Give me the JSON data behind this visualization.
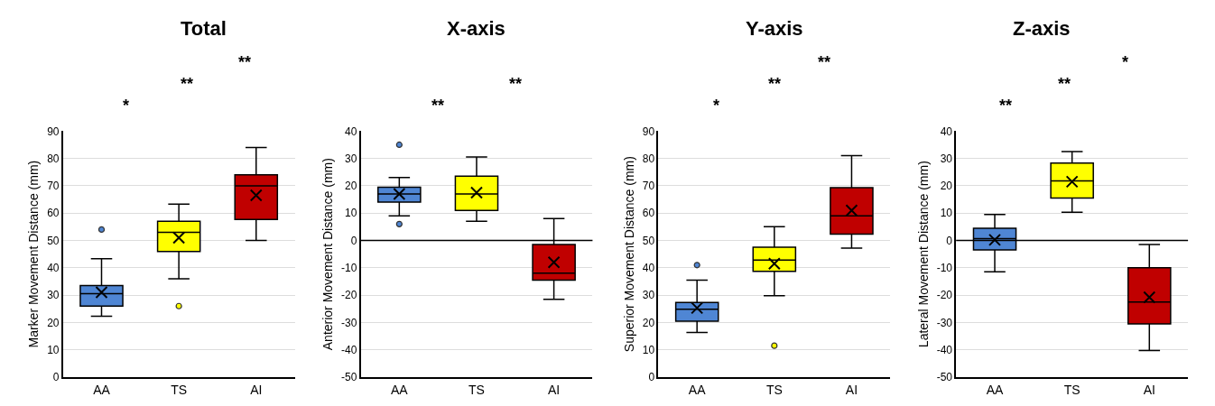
{
  "chart_data": [
    {
      "type": "box",
      "title": "Total",
      "ylabel": "Marker Movement Distance (mm)",
      "categories": [
        "AA",
        "TS",
        "AI"
      ],
      "colors": [
        "#4f86d4",
        "#ffff00",
        "#c00000"
      ],
      "ylim": [
        0,
        90
      ],
      "yticks": [
        0,
        10,
        20,
        30,
        40,
        50,
        60,
        70,
        80,
        90
      ],
      "grid": "y",
      "marker": "cross",
      "boxes": [
        {
          "low": 22.3,
          "q1": 26,
          "median": 30.5,
          "q3": 33.5,
          "high": 43.3,
          "mean": 31,
          "outliers": [
            54
          ]
        },
        {
          "low": 36,
          "q1": 46,
          "median": 53,
          "q3": 57,
          "high": 63.3,
          "mean": 51,
          "outliers": [
            26
          ]
        },
        {
          "low": 50,
          "q1": 57.7,
          "median": 70,
          "q3": 74,
          "high": 84,
          "mean": 66.5
        }
      ],
      "annotations": [
        "*",
        "**",
        "**"
      ]
    },
    {
      "type": "box",
      "title": "X-axis",
      "ylabel": "Anterior Movement Distance (mm)",
      "categories": [
        "AA",
        "TS",
        "AI"
      ],
      "colors": [
        "#4f86d4",
        "#ffff00",
        "#c00000"
      ],
      "ylim": [
        -50,
        40
      ],
      "yticks": [
        -50,
        -40,
        -30,
        -20,
        -10,
        0,
        10,
        20,
        30,
        40
      ],
      "grid": "y",
      "marker": "cross",
      "boxes": [
        {
          "low": 9,
          "q1": 14,
          "median": 17,
          "q3": 19.5,
          "high": 23,
          "mean": 17,
          "outliers": [
            35,
            6
          ]
        },
        {
          "low": 7,
          "q1": 11,
          "median": 17,
          "q3": 23.5,
          "high": 30.5,
          "mean": 17.5
        },
        {
          "low": -21.5,
          "q1": -14.5,
          "median": -12,
          "q3": -1.5,
          "high": 8,
          "mean": -8
        }
      ],
      "ref_lines": [
        {
          "axis": "y",
          "value": 0,
          "color": "#000000"
        }
      ],
      "annotations": [
        "**",
        "**"
      ]
    },
    {
      "type": "box",
      "title": "Y-axis",
      "ylabel": "Superior Movement Distance (mm)",
      "categories": [
        "AA",
        "TS",
        "AI"
      ],
      "colors": [
        "#4f86d4",
        "#ffff00",
        "#c00000"
      ],
      "ylim": [
        0,
        90
      ],
      "yticks": [
        0,
        10,
        20,
        30,
        40,
        50,
        60,
        70,
        80,
        90
      ],
      "grid": "y",
      "marker": "cross",
      "boxes": [
        {
          "low": 16.3,
          "q1": 20.5,
          "median": 24.8,
          "q3": 27.3,
          "high": 35.5,
          "mean": 25.3,
          "outliers": [
            41
          ]
        },
        {
          "low": 29.8,
          "q1": 38.7,
          "median": 42.8,
          "q3": 47.5,
          "high": 55,
          "mean": 41.5,
          "outliers": [
            11.5
          ]
        },
        {
          "low": 47.2,
          "q1": 52.3,
          "median": 59,
          "q3": 69.3,
          "high": 81,
          "mean": 61
        }
      ],
      "annotations": [
        "*",
        "**",
        "**"
      ]
    },
    {
      "type": "box",
      "title": "Z-axis",
      "ylabel": "Lateral Movement Distance (mm)",
      "categories": [
        "AA",
        "TS",
        "AI"
      ],
      "colors": [
        "#4f86d4",
        "#ffff00",
        "#c00000"
      ],
      "ylim": [
        -50,
        40
      ],
      "yticks": [
        -50,
        -40,
        -30,
        -20,
        -10,
        0,
        10,
        20,
        30,
        40
      ],
      "grid": "y",
      "marker": "cross",
      "boxes": [
        {
          "low": -11.5,
          "q1": -3.5,
          "median": 0.7,
          "q3": 4.5,
          "high": 9.5,
          "mean": 0.2
        },
        {
          "low": 10.3,
          "q1": 15.5,
          "median": 21.8,
          "q3": 28.3,
          "high": 32.5,
          "mean": 21.5
        },
        {
          "low": -40.3,
          "q1": -30.5,
          "median": -22.5,
          "q3": -10,
          "high": -1.5,
          "mean": -20.8
        }
      ],
      "ref_lines": [
        {
          "axis": "y",
          "value": 0,
          "color": "#000000"
        }
      ],
      "annotations": [
        "**",
        "**",
        "*"
      ]
    }
  ]
}
